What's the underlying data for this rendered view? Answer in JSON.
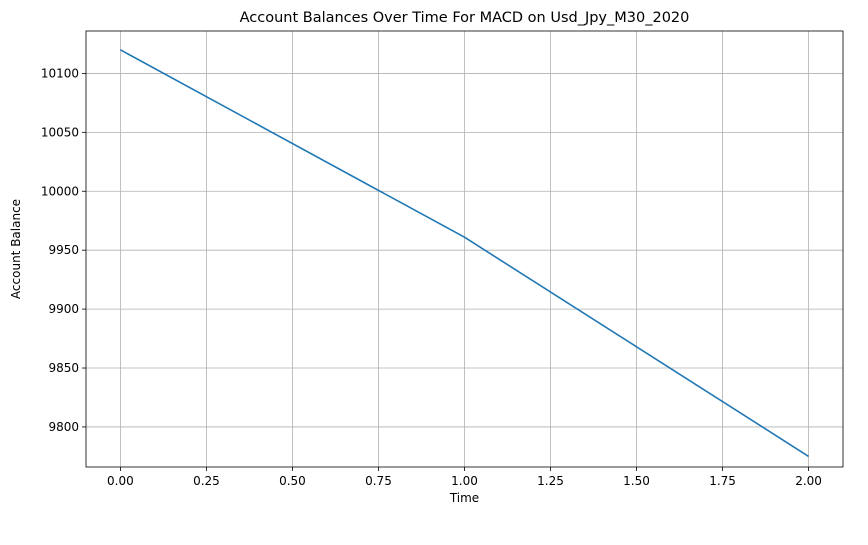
{
  "chart_data": {
    "type": "line",
    "title": "Account Balances Over Time For MACD on Usd_Jpy_M30_2020",
    "xlabel": "Time",
    "ylabel": "Account Balance",
    "xlim": [
      -0.1,
      2.1
    ],
    "ylim": [
      9766,
      10136
    ],
    "xticks": [
      0.0,
      0.25,
      0.5,
      0.75,
      1.0,
      1.25,
      1.5,
      1.75,
      2.0
    ],
    "xtick_labels": [
      "0.00",
      "0.25",
      "0.50",
      "0.75",
      "1.00",
      "1.25",
      "1.50",
      "1.75",
      "2.00"
    ],
    "yticks": [
      9800,
      9850,
      9900,
      9950,
      10000,
      10050,
      10100
    ],
    "ytick_labels": [
      "9800",
      "9850",
      "9900",
      "9950",
      "10000",
      "10050",
      "10100"
    ],
    "grid": true,
    "series": [
      {
        "color": "#1f77b4",
        "x": [
          0,
          1,
          2
        ],
        "y": [
          10120,
          9961,
          9775
        ]
      }
    ]
  }
}
